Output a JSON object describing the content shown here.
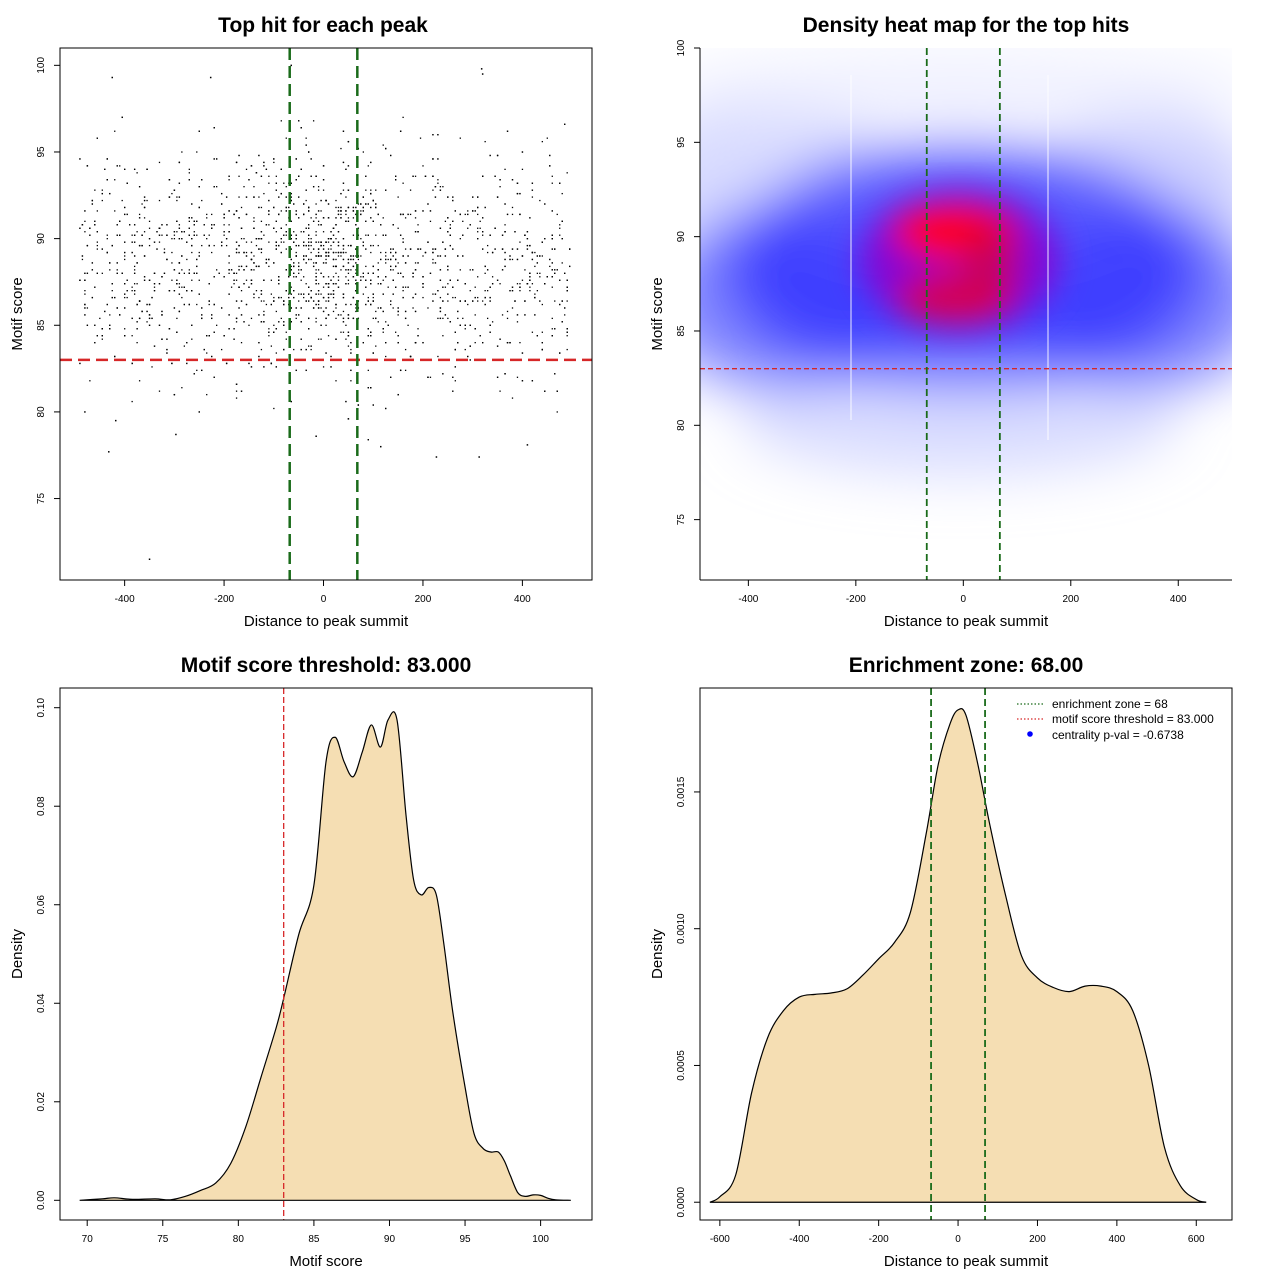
{
  "chart_data": [
    {
      "type": "scatter",
      "title": "Top hit for each peak",
      "xlabel": "Distance to peak summit",
      "ylabel": "Motif score",
      "xlim": [
        -530,
        540
      ],
      "ylim": [
        70.3,
        101
      ],
      "xticks": [
        -400,
        -200,
        0,
        200,
        400
      ],
      "yticks": [
        75,
        80,
        85,
        90,
        95,
        100
      ],
      "x_range_points": [
        -490,
        495
      ],
      "threshold_y": 83.0,
      "zone_x": [
        -68,
        68
      ],
      "point_count": 3000,
      "notable_points": [
        {
          "x": -425,
          "y": 99.3
        },
        {
          "x": -227,
          "y": 99.3
        },
        {
          "x": -65,
          "y": 100.0
        },
        {
          "x": 318,
          "y": 99.8
        },
        {
          "x": 320,
          "y": 99.5
        },
        {
          "x": -350,
          "y": 71.5
        },
        {
          "x": -432,
          "y": 77.7
        },
        {
          "x": 227,
          "y": 77.4
        },
        {
          "x": 313,
          "y": 77.4
        },
        {
          "x": 410,
          "y": 78.1
        },
        {
          "x": -297,
          "y": 78.7
        },
        {
          "x": -418,
          "y": 79.5
        }
      ],
      "grid": false,
      "colors": {
        "points": "#000000",
        "threshold": "#d62728",
        "zone": "#1a6b1a"
      }
    },
    {
      "type": "heatmap",
      "title": "Density heat map for the top hits",
      "xlabel": "Distance to peak summit",
      "ylabel": "Motif score",
      "xlim": [
        -490,
        500
      ],
      "ylim": [
        71.8,
        100
      ],
      "xticks": [
        -400,
        -200,
        0,
        200,
        400
      ],
      "yticks": [
        75,
        80,
        85,
        90,
        95,
        100
      ],
      "threshold_y": 83.0,
      "zone_x": [
        -68,
        68
      ],
      "peak_x": 0,
      "peak_y": 90,
      "colors": {
        "low": "#ffffff",
        "mid": "#0000ff",
        "high": "#ff0000",
        "threshold": "#d62728",
        "zone": "#1a6b1a"
      }
    },
    {
      "type": "area",
      "title": "Motif score threshold: 83.000",
      "xlabel": "Motif score",
      "ylabel": "Density",
      "xlim": [
        68.2,
        103.4
      ],
      "ylim": [
        -0.004,
        0.104
      ],
      "xticks": [
        70,
        75,
        80,
        85,
        90,
        95,
        100
      ],
      "yticks": [
        0.0,
        0.02,
        0.04,
        0.06,
        0.08,
        0.1
      ],
      "ytick_labels": [
        "0.00",
        "0.02",
        "0.04",
        "0.06",
        "0.08",
        "0.10"
      ],
      "threshold_x": 83.0,
      "x": [
        69.5,
        71.0,
        71.8,
        73.0,
        74.5,
        75.5,
        76.5,
        77.5,
        78.5,
        79.5,
        80.5,
        81.5,
        82.5,
        83.0,
        84.0,
        85.0,
        85.8,
        86.4,
        87.0,
        87.6,
        88.2,
        88.8,
        89.4,
        89.9,
        90.5,
        91.1,
        91.6,
        92.1,
        92.6,
        93.1,
        93.6,
        94.2,
        95.0,
        95.6,
        96.2,
        96.7,
        97.2,
        97.6,
        98.0,
        98.5,
        99.0,
        99.5,
        100.0,
        100.5,
        101.0,
        102.0
      ],
      "values": [
        0.0,
        0.0003,
        0.0005,
        0.0002,
        0.0003,
        0.0001,
        0.0008,
        0.002,
        0.0035,
        0.0075,
        0.015,
        0.025,
        0.035,
        0.041,
        0.054,
        0.064,
        0.089,
        0.094,
        0.089,
        0.086,
        0.091,
        0.0965,
        0.092,
        0.0975,
        0.0975,
        0.078,
        0.065,
        0.062,
        0.0635,
        0.062,
        0.052,
        0.038,
        0.023,
        0.0135,
        0.0105,
        0.0098,
        0.0098,
        0.008,
        0.005,
        0.0015,
        0.0008,
        0.0011,
        0.001,
        0.0004,
        0.0001,
        0.0
      ],
      "fill": "#f5deb3",
      "colors": {
        "threshold": "#d62728"
      }
    },
    {
      "type": "area",
      "title": "Enrichment zone: 68.00",
      "xlabel": "Distance to peak summit",
      "ylabel": "Density",
      "xlim": [
        -650,
        690
      ],
      "ylim": [
        -6.5e-05,
        0.00188
      ],
      "xticks": [
        -600,
        -400,
        -200,
        0,
        200,
        400,
        600
      ],
      "yticks": [
        0.0,
        0.0005,
        0.001,
        0.0015
      ],
      "ytick_labels": [
        "0.0000",
        "0.0005",
        "0.0010",
        "0.0015"
      ],
      "zone_x": [
        -68,
        68
      ],
      "x": [
        -625,
        -600,
        -560,
        -520,
        -480,
        -440,
        -400,
        -360,
        -320,
        -280,
        -240,
        -200,
        -160,
        -120,
        -80,
        -50,
        -20,
        0,
        20,
        50,
        80,
        120,
        160,
        200,
        240,
        280,
        320,
        360,
        400,
        440,
        480,
        520,
        560,
        600,
        625
      ],
      "values": [
        0.0,
        2e-05,
        0.0001,
        0.0004,
        0.0006,
        0.0007,
        0.00075,
        0.00076,
        0.000765,
        0.00078,
        0.00083,
        0.00089,
        0.00095,
        0.00106,
        0.00135,
        0.0016,
        0.00175,
        0.0018,
        0.00178,
        0.0016,
        0.00138,
        0.00112,
        0.0009,
        0.00082,
        0.000785,
        0.00077,
        0.00079,
        0.00079,
        0.00077,
        0.0007,
        0.0005,
        0.0002,
        6e-05,
        1e-05,
        0.0
      ],
      "fill": "#f5deb3",
      "legend": {
        "position": "top-right",
        "entries": [
          {
            "label": "enrichment zone = 68",
            "color": "#1a6b1a",
            "style": "dotted-line"
          },
          {
            "label": "motif score threshold = 83.000",
            "color": "#d62728",
            "style": "dotted-line"
          },
          {
            "label": "centrality p-val = -0.6738",
            "color": "#0000ff",
            "style": "point"
          }
        ]
      },
      "colors": {
        "zone": "#1a6b1a"
      }
    }
  ]
}
